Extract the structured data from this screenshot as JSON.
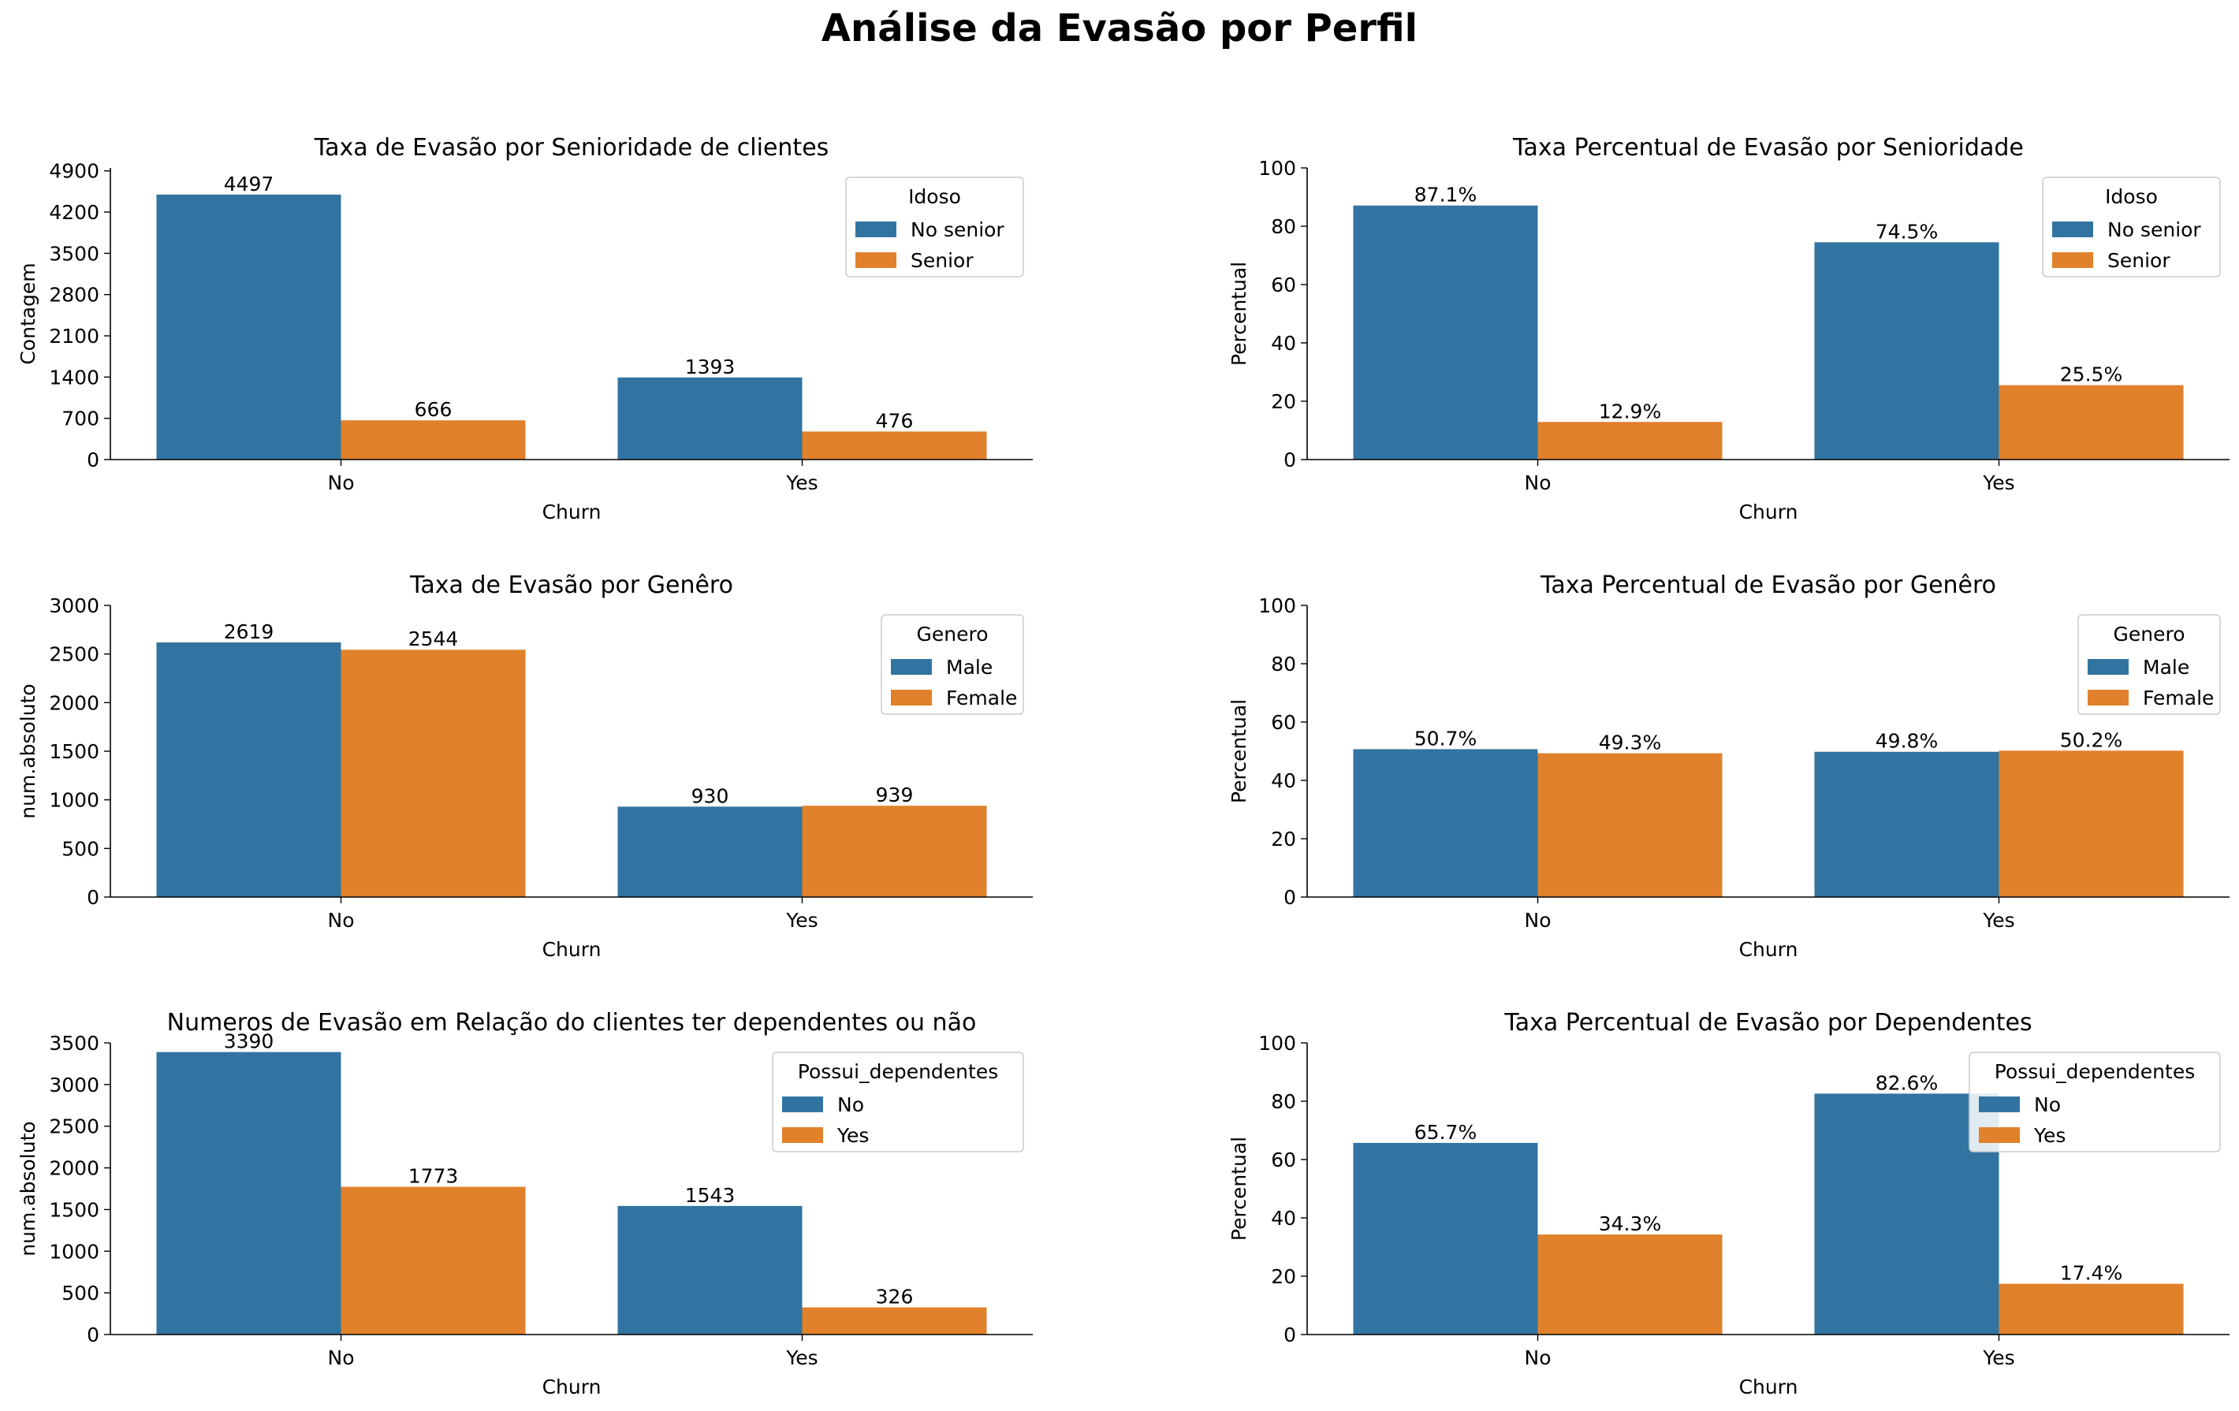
{
  "suptitle": "Análise da Evasão por Perfil",
  "colors": {
    "series0": "#3274a1",
    "series1": "#e1812c"
  },
  "chart_data": [
    {
      "type": "bar",
      "title": "Taxa de Evasão por Senioridade de clientes",
      "xlabel": "Churn",
      "ylabel": "Contagem",
      "categories": [
        "No",
        "Yes"
      ],
      "ylim": [
        0,
        4950
      ],
      "yticks": [
        0,
        700,
        1400,
        2100,
        2800,
        3500,
        4200,
        4900
      ],
      "legend": {
        "title": "Idoso",
        "position": "top-right"
      },
      "series": [
        {
          "name": "No senior",
          "values": [
            4497,
            1393
          ],
          "labels": [
            "4497",
            "1393"
          ]
        },
        {
          "name": "Senior",
          "values": [
            666,
            476
          ],
          "labels": [
            "666",
            "476"
          ]
        }
      ]
    },
    {
      "type": "bar",
      "title": "Taxa Percentual de Evasão por Senioridade",
      "xlabel": "Churn",
      "ylabel": "Percentual",
      "categories": [
        "No",
        "Yes"
      ],
      "ylim": [
        0,
        100
      ],
      "yticks": [
        0,
        20,
        40,
        60,
        80,
        100
      ],
      "legend": {
        "title": "Idoso",
        "position": "top-right"
      },
      "series": [
        {
          "name": "No senior",
          "values": [
            87.1,
            74.5
          ],
          "labels": [
            "87.1%",
            "74.5%"
          ]
        },
        {
          "name": "Senior",
          "values": [
            12.9,
            25.5
          ],
          "labels": [
            "12.9%",
            "25.5%"
          ]
        }
      ]
    },
    {
      "type": "bar",
      "title": "Taxa de Evasão por Genêro",
      "xlabel": "Churn",
      "ylabel": "num.absoluto",
      "categories": [
        "No",
        "Yes"
      ],
      "ylim": [
        0,
        3000
      ],
      "yticks": [
        0,
        500,
        1000,
        1500,
        2000,
        2500,
        3000
      ],
      "legend": {
        "title": "Genero",
        "position": "top-right"
      },
      "series": [
        {
          "name": "Male",
          "values": [
            2619,
            930
          ],
          "labels": [
            "2619",
            "930"
          ]
        },
        {
          "name": "Female",
          "values": [
            2544,
            939
          ],
          "labels": [
            "2544",
            "939"
          ]
        }
      ]
    },
    {
      "type": "bar",
      "title": "Taxa Percentual de Evasão por Genêro",
      "xlabel": "Churn",
      "ylabel": "Percentual",
      "categories": [
        "No",
        "Yes"
      ],
      "ylim": [
        0,
        100
      ],
      "yticks": [
        0,
        20,
        40,
        60,
        80,
        100
      ],
      "legend": {
        "title": "Genero",
        "position": "top-right"
      },
      "series": [
        {
          "name": "Male",
          "values": [
            50.7,
            49.8
          ],
          "labels": [
            "50.7%",
            "49.8%"
          ]
        },
        {
          "name": "Female",
          "values": [
            49.3,
            50.2
          ],
          "labels": [
            "49.3%",
            "50.2%"
          ]
        }
      ]
    },
    {
      "type": "bar",
      "title": "Numeros de Evasão em Relação do clientes ter dependentes ou não",
      "xlabel": "Churn",
      "ylabel": "num.absoluto",
      "categories": [
        "No",
        "Yes"
      ],
      "ylim": [
        0,
        3500
      ],
      "yticks": [
        0,
        500,
        1000,
        1500,
        2000,
        2500,
        3000,
        3500
      ],
      "legend": {
        "title": "Possui_dependentes",
        "position": "top-right"
      },
      "series": [
        {
          "name": "No",
          "values": [
            3390,
            1543
          ],
          "labels": [
            "3390",
            "1543"
          ]
        },
        {
          "name": "Yes",
          "values": [
            1773,
            326
          ],
          "labels": [
            "1773",
            "326"
          ]
        }
      ]
    },
    {
      "type": "bar",
      "title": "Taxa Percentual de Evasão por Dependentes",
      "xlabel": "Churn",
      "ylabel": "Percentual",
      "categories": [
        "No",
        "Yes"
      ],
      "ylim": [
        0,
        100
      ],
      "yticks": [
        0,
        20,
        40,
        60,
        80,
        100
      ],
      "legend": {
        "title": "Possui_dependentes",
        "position": "top-right"
      },
      "series": [
        {
          "name": "No",
          "values": [
            65.7,
            82.6
          ],
          "labels": [
            "65.7%",
            "82.6%"
          ]
        },
        {
          "name": "Yes",
          "values": [
            34.3,
            17.4
          ],
          "labels": [
            "34.3%",
            "17.4%"
          ]
        }
      ]
    }
  ]
}
